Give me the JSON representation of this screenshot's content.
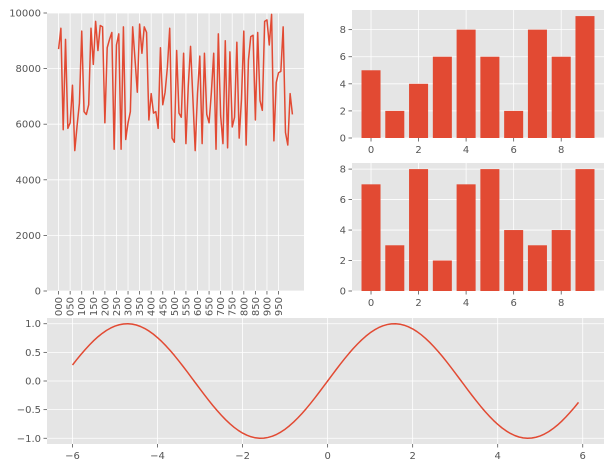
{
  "chart_data": [
    {
      "type": "line",
      "title": "",
      "xlabel": "",
      "ylabel": "",
      "ylim": [
        0,
        10000
      ],
      "y_ticks": [
        "0",
        "2000",
        "4000",
        "6000",
        "8000",
        "10000"
      ],
      "x_tick_labels": [
        "000",
        "050",
        "100",
        "150",
        "200",
        "250",
        "300",
        "350",
        "400",
        "450",
        "500",
        "550",
        "600",
        "650",
        "700",
        "750",
        "800",
        "850",
        "900",
        "950"
      ],
      "grid": true,
      "series": [
        {
          "values": [
            8700,
            9450,
            5800,
            9050,
            5850,
            6050,
            7400,
            5050,
            5950,
            6750,
            9350,
            6450,
            6350,
            6700,
            9450,
            8150,
            9700,
            8650,
            9550,
            9500,
            6050,
            8750,
            9050,
            9300,
            5100,
            8850,
            9250,
            5100,
            9500,
            5450,
            6050,
            6450,
            9500,
            8350,
            7150,
            9600,
            8550,
            9500,
            9300,
            6150,
            7100,
            6400,
            6450,
            5850,
            8750,
            6700,
            7150,
            8050,
            9450,
            5500,
            5350,
            8650,
            6400,
            6250,
            8550,
            5300,
            7350,
            8800,
            6950,
            5050,
            7100,
            8450,
            5300,
            8550,
            6350,
            6050,
            7150,
            8550,
            5100,
            9250,
            6300,
            5300,
            9000,
            5150,
            8600,
            5900,
            6250,
            8950,
            5500,
            6900,
            9350,
            5250,
            8300,
            9150,
            9200,
            6150,
            9300,
            6850,
            6500,
            9700,
            9750,
            8850,
            9950,
            5400,
            7500,
            7850,
            7900,
            9500,
            5700,
            5250,
            7100,
            6350
          ]
        }
      ]
    },
    {
      "type": "bar",
      "title": "",
      "xlabel": "",
      "ylabel": "",
      "categories": [
        0,
        1,
        2,
        3,
        4,
        5,
        6,
        7,
        8,
        9
      ],
      "values": [
        5,
        2,
        4,
        6,
        8,
        6,
        2,
        8,
        6,
        9
      ],
      "ylim": [
        0,
        9.45
      ],
      "x_ticks": [
        "0",
        "2",
        "4",
        "6",
        "8"
      ],
      "y_ticks": [
        "0",
        "2",
        "4",
        "6",
        "8"
      ],
      "grid": true
    },
    {
      "type": "bar",
      "title": "",
      "xlabel": "",
      "ylabel": "",
      "categories": [
        0,
        1,
        2,
        3,
        4,
        5,
        6,
        7,
        8,
        9
      ],
      "values": [
        7,
        3,
        8,
        2,
        7,
        8,
        4,
        3,
        4,
        8
      ],
      "ylim": [
        0,
        8.4
      ],
      "x_ticks": [
        "0",
        "2",
        "4",
        "6",
        "8"
      ],
      "y_ticks": [
        "0",
        "2",
        "4",
        "6",
        "8"
      ],
      "grid": true
    },
    {
      "type": "line",
      "title": "",
      "xlabel": "",
      "ylabel": "",
      "function": "sin(x)",
      "x_range": [
        -6,
        5.9
      ],
      "x_step": 0.1,
      "xlim": [
        -6.6,
        6.5
      ],
      "ylim": [
        -1.1,
        1.1
      ],
      "x_ticks": [
        "−6",
        "−4",
        "−2",
        "0",
        "2",
        "4",
        "6"
      ],
      "y_ticks": [
        "−1.0",
        "−0.5",
        "0.0",
        "0.5",
        "1.0"
      ],
      "grid": true
    }
  ]
}
